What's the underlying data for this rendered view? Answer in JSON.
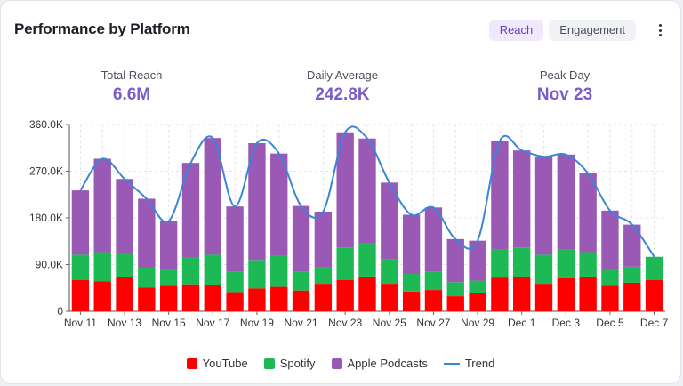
{
  "header": {
    "title": "Performance by Platform"
  },
  "tabs": [
    {
      "label": "Reach"
    },
    {
      "label": "Engagement"
    }
  ],
  "stats": [
    {
      "label": "Total Reach",
      "value": "6.6M"
    },
    {
      "label": "Daily Average",
      "value": "242.8K"
    },
    {
      "label": "Peak Day",
      "value": "Nov 23"
    }
  ],
  "colors": {
    "youtube": "#ff0000",
    "spotify": "#1db954",
    "apple": "#9b59b6",
    "trend": "#3a86d4",
    "accent": "#7a5cc9"
  },
  "chart_data": {
    "type": "bar",
    "stacked": true,
    "categories": [
      "Nov 11",
      "Nov 12",
      "Nov 13",
      "Nov 14",
      "Nov 15",
      "Nov 16",
      "Nov 17",
      "Nov 18",
      "Nov 19",
      "Nov 20",
      "Nov 21",
      "Nov 22",
      "Nov 23",
      "Nov 24",
      "Nov 25",
      "Nov 26",
      "Nov 27",
      "Nov 28",
      "Nov 29",
      "Nov 30",
      "Dec 1",
      "Dec 2",
      "Dec 3",
      "Dec 4",
      "Dec 5",
      "Dec 6",
      "Dec 7"
    ],
    "x_tick_labels": [
      "Nov 11",
      "Nov 13",
      "Nov 15",
      "Nov 17",
      "Nov 19",
      "Nov 21",
      "Nov 23",
      "Nov 25",
      "Nov 27",
      "Nov 29",
      "Dec 1",
      "Dec 3",
      "Dec 5",
      "Dec 7"
    ],
    "series": [
      {
        "name": "YouTube",
        "color": "#ff0000",
        "values": [
          60000,
          58000,
          66000,
          46000,
          49000,
          52000,
          51000,
          37000,
          44000,
          47000,
          40000,
          53000,
          60000,
          67000,
          53000,
          38000,
          41000,
          29000,
          36000,
          65000,
          66000,
          53000,
          64000,
          67000,
          49000,
          55000,
          60000
        ]
      },
      {
        "name": "Spotify",
        "color": "#1db954",
        "values": [
          49000,
          56000,
          46000,
          38000,
          30000,
          51000,
          58000,
          40000,
          55000,
          60000,
          36000,
          32000,
          63000,
          65000,
          47000,
          34000,
          35000,
          27000,
          23000,
          54000,
          57000,
          56000,
          55000,
          47000,
          33000,
          31000,
          45000
        ]
      },
      {
        "name": "Apple Podcasts",
        "color": "#9b59b6",
        "values": [
          124000,
          180000,
          143000,
          133000,
          95000,
          183000,
          225000,
          125000,
          225000,
          197000,
          127000,
          107000,
          222000,
          201000,
          148000,
          114000,
          124000,
          83000,
          77000,
          209000,
          187000,
          189000,
          183000,
          152000,
          112000,
          81000,
          0
        ]
      }
    ],
    "trend": {
      "name": "Trend",
      "color": "#3a86d4",
      "values": [
        233000,
        294000,
        255000,
        217000,
        174000,
        286000,
        334000,
        202000,
        324000,
        304000,
        203000,
        192000,
        345000,
        333000,
        248000,
        186000,
        200000,
        139000,
        136000,
        328000,
        310000,
        298000,
        302000,
        266000,
        194000,
        167000,
        105000
      ]
    },
    "yticks": [
      "0",
      "90.0K",
      "180.0K",
      "270.0K",
      "360.0K"
    ],
    "ylim": [
      0,
      360000
    ],
    "grid": true,
    "legend_position": "bottom"
  }
}
